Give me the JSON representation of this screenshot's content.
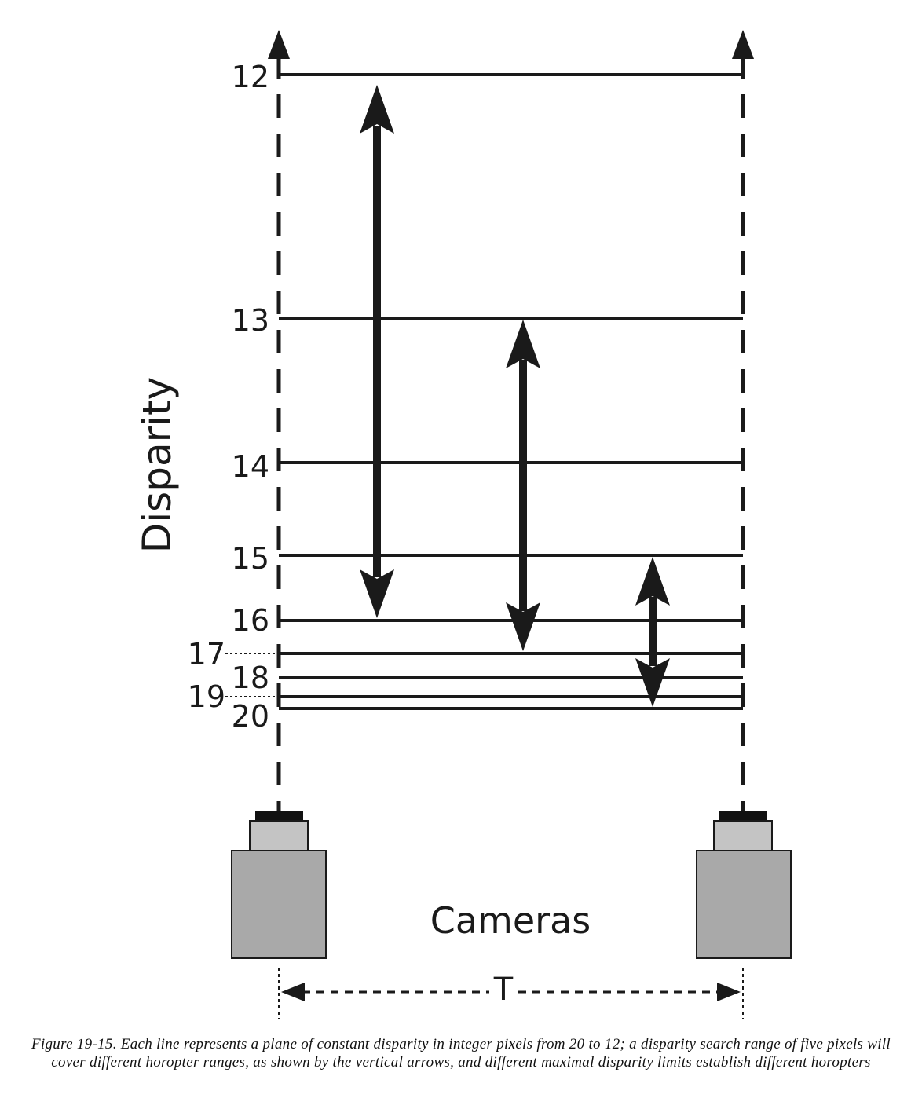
{
  "diagram": {
    "axis_label": "Disparity",
    "disparity_labels": [
      "12",
      "13",
      "14",
      "15",
      "16",
      "17",
      "18",
      "19",
      "20"
    ],
    "cameras_label": "Cameras",
    "baseline_label": "T"
  },
  "caption": "Figure 19-15. Each line represents a plane of constant disparity in integer pixels from 20 to 12; a disparity search range of five pixels will cover different horopter ranges, as shown by the vertical arrows, and different maximal disparity limits establish different horopters",
  "colors": {
    "ink": "#1a1a1a",
    "camera_body": "#a9a9a9",
    "camera_lens": "#c4c4c4"
  }
}
